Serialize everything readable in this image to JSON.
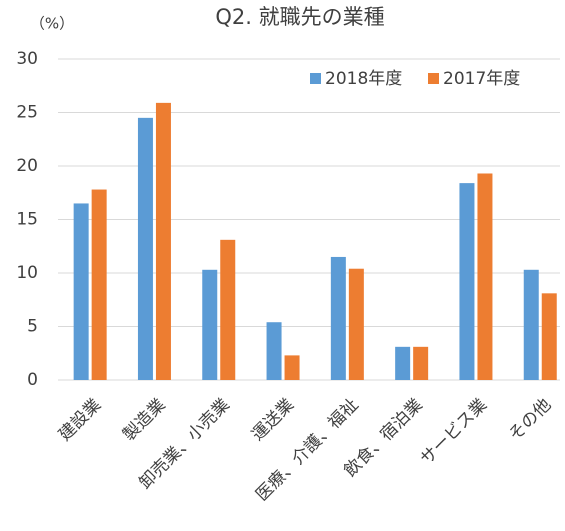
{
  "chart_data": {
    "type": "bar",
    "title": "Q2. 就職先の業種",
    "y_label": "（%）",
    "categories": [
      "建設業",
      "製造業",
      "卸売業、小売業",
      "運送業",
      "医療、介護、福祉",
      "飲食、宿泊業",
      "サービス業",
      "その他"
    ],
    "series": [
      {
        "name": "2018年度",
        "color": "#5b9bd5",
        "values": [
          16.5,
          24.5,
          10.3,
          5.4,
          11.5,
          3.1,
          18.4,
          10.3
        ]
      },
      {
        "name": "2017年度",
        "color": "#ed7d31",
        "values": [
          17.8,
          25.9,
          13.1,
          2.3,
          10.4,
          3.1,
          19.3,
          8.1
        ]
      }
    ],
    "ylim": [
      0,
      30
    ],
    "yticks": [
      0,
      5,
      10,
      15,
      20,
      25,
      30
    ],
    "grid": true,
    "legend": "top-right"
  }
}
